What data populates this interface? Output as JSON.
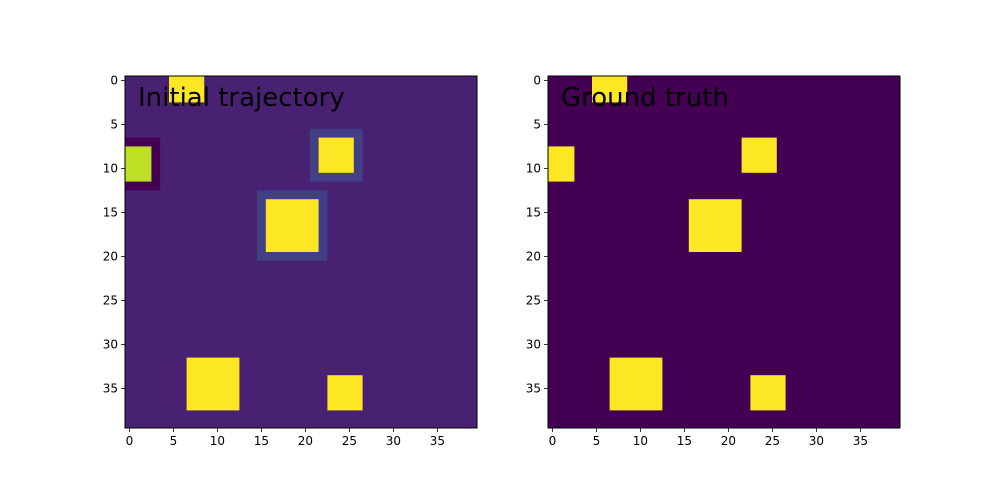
{
  "chart_data": [
    {
      "type": "heatmap",
      "title": "Initial trajectory",
      "xlabel": "",
      "ylabel": "",
      "grid_size": 40,
      "xlim": [
        -0.5,
        39.5
      ],
      "ylim": [
        39.5,
        -0.5
      ],
      "x_ticks": [
        0,
        5,
        10,
        15,
        20,
        25,
        30,
        35
      ],
      "y_ticks": [
        0,
        5,
        10,
        15,
        20,
        25,
        30,
        35
      ],
      "background_color": "#482173",
      "cells": [
        {
          "rows": [
            0,
            2
          ],
          "cols": [
            5,
            8
          ],
          "color": "#fde725"
        },
        {
          "rows": [
            7,
            12
          ],
          "cols": [
            0,
            3
          ],
          "color": "#440154"
        },
        {
          "rows": [
            8,
            11
          ],
          "cols": [
            0,
            2
          ],
          "color": "#bddf26"
        },
        {
          "rows": [
            6,
            11
          ],
          "cols": [
            21,
            26
          ],
          "color": "#423f85"
        },
        {
          "rows": [
            7,
            10
          ],
          "cols": [
            22,
            25
          ],
          "color": "#fde725"
        },
        {
          "rows": [
            13,
            20
          ],
          "cols": [
            15,
            22
          ],
          "color": "#423f85"
        },
        {
          "rows": [
            14,
            19
          ],
          "cols": [
            16,
            21
          ],
          "color": "#fde725"
        },
        {
          "rows": [
            32,
            37
          ],
          "cols": [
            7,
            12
          ],
          "color": "#fde725"
        },
        {
          "rows": [
            34,
            37
          ],
          "cols": [
            23,
            26
          ],
          "color": "#fde725"
        }
      ]
    },
    {
      "type": "heatmap",
      "title": "Ground truth",
      "xlabel": "",
      "ylabel": "",
      "grid_size": 40,
      "xlim": [
        -0.5,
        39.5
      ],
      "ylim": [
        39.5,
        -0.5
      ],
      "x_ticks": [
        0,
        5,
        10,
        15,
        20,
        25,
        30,
        35
      ],
      "y_ticks": [
        0,
        5,
        10,
        15,
        20,
        25,
        30,
        35
      ],
      "background_color": "#440154",
      "cells": [
        {
          "rows": [
            0,
            2
          ],
          "cols": [
            5,
            8
          ],
          "color": "#fde725"
        },
        {
          "rows": [
            8,
            11
          ],
          "cols": [
            0,
            2
          ],
          "color": "#fde725"
        },
        {
          "rows": [
            7,
            10
          ],
          "cols": [
            22,
            25
          ],
          "color": "#fde725"
        },
        {
          "rows": [
            14,
            19
          ],
          "cols": [
            16,
            21
          ],
          "color": "#fde725"
        },
        {
          "rows": [
            32,
            37
          ],
          "cols": [
            7,
            12
          ],
          "color": "#fde725"
        },
        {
          "rows": [
            34,
            37
          ],
          "cols": [
            23,
            26
          ],
          "color": "#fde725"
        }
      ]
    }
  ]
}
